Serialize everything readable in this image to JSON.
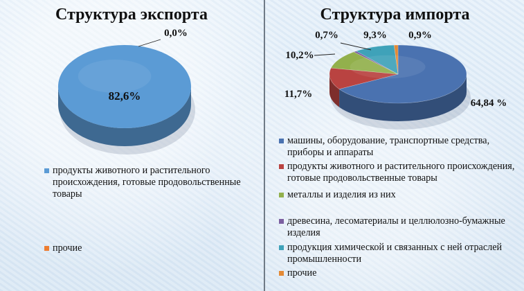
{
  "chart_data": [
    {
      "type": "pie",
      "title": "Структура экспорта",
      "slices": [
        {
          "label": "продукты животного и растительного происхождения, готовые продовольственные товары",
          "value": 82.6,
          "display": "82,6%",
          "color": "#5b9bd5"
        },
        {
          "label": "прочие",
          "value": 0.0,
          "display": "0,0%",
          "color": "#ed7d31"
        }
      ]
    },
    {
      "type": "pie",
      "title": "Структура импорта",
      "slices": [
        {
          "label": "машины, оборудование, транспортные средства, приборы и аппараты",
          "value": 64.84,
          "display": "64,84 %",
          "color": "#4a72b0"
        },
        {
          "label": "продукты животного и растительного происхождения, готовые продовольственные товары",
          "value": 11.7,
          "display": "11,7%",
          "color": "#b94341"
        },
        {
          "label": "металлы и изделия из них",
          "value": 10.2,
          "display": "10,2%",
          "color": "#92b04c"
        },
        {
          "label": "древесина, лесоматериалы и целлюлозно-бумажные изделия",
          "value": 0.7,
          "display": "0,7%",
          "color": "#7b5fa0"
        },
        {
          "label": "продукция химической и связанных с ней отраслей промышленности",
          "value": 9.3,
          "display": "9,3%",
          "color": "#3fa2b9"
        },
        {
          "label": "прочие",
          "value": 0.9,
          "display": "0,9%",
          "color": "#e38a36"
        }
      ]
    }
  ]
}
